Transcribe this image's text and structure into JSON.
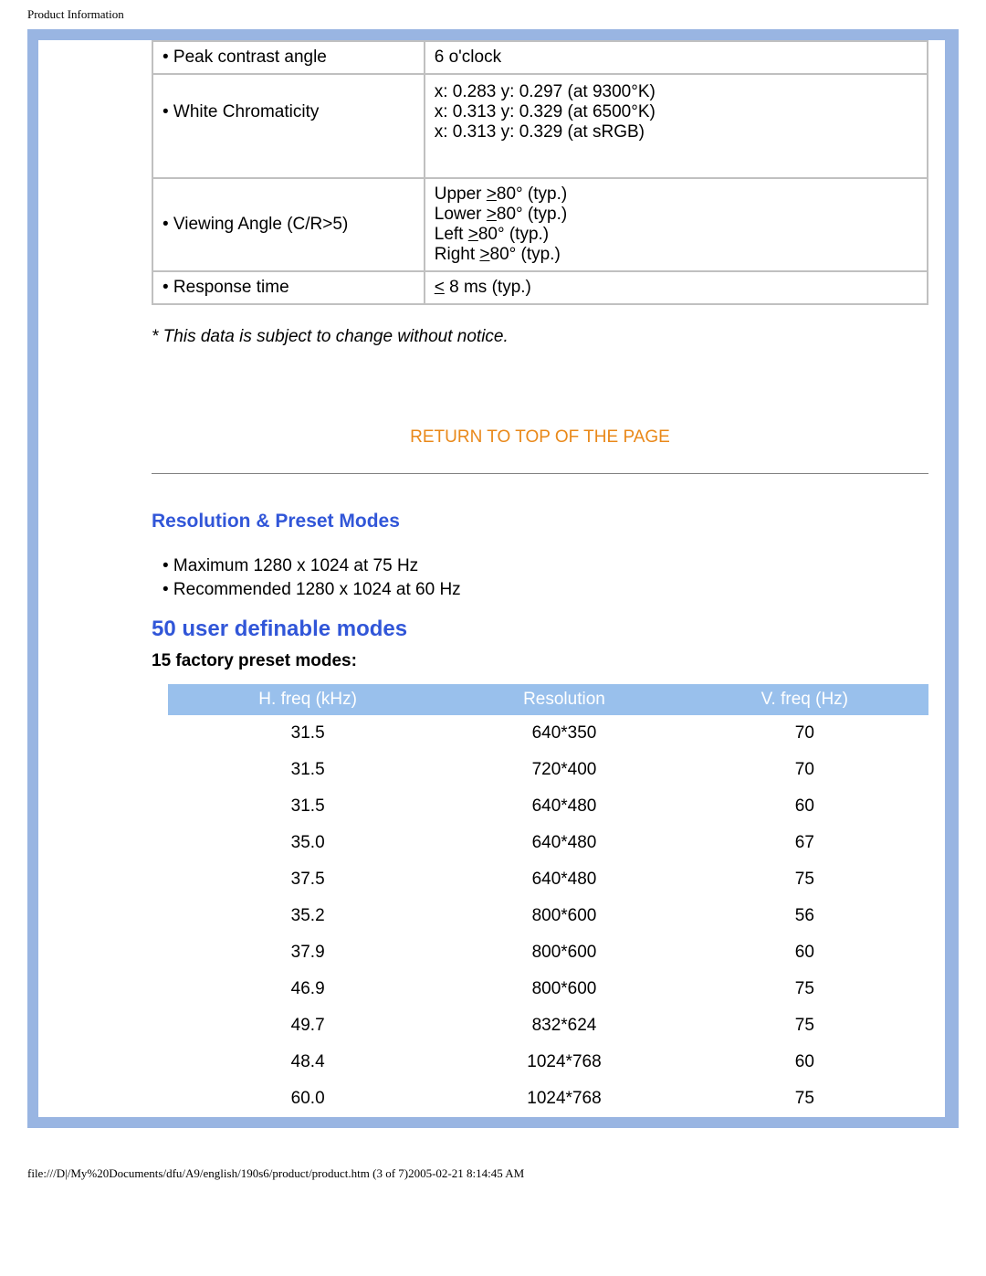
{
  "page_header": "Product Information",
  "spec_table": {
    "rows": [
      {
        "label": "Peak contrast angle",
        "value": "6 o'clock"
      },
      {
        "label": "White Chromaticity",
        "value_lines": [
          "x: 0.283 y: 0.297 (at 9300°K)",
          "x: 0.313 y: 0.329 (at 6500°K)",
          "x: 0.313 y: 0.329 (at sRGB)"
        ],
        "tall": true
      },
      {
        "label": "Viewing Angle (C/R>5)",
        "value_lines": [
          "Upper >80° (typ.)",
          "Lower >80° (typ.)",
          "Left >80° (typ.)",
          "Right >80° (typ.)"
        ],
        "ge_prefix": true
      },
      {
        "label": "Response time",
        "value": "< 8 ms (typ.)",
        "le": true
      }
    ]
  },
  "footnote": "* This data is subject to change without notice.",
  "toplink_label": "RETURN TO TOP OF THE PAGE",
  "section_title": "Resolution & Preset Modes",
  "bullets": [
    "Maximum 1280 x 1024 at 75 Hz",
    "Recommended 1280 x 1024 at 60 Hz"
  ],
  "subheader_big": "50 user definable modes",
  "subheader_small": "15 factory preset modes:",
  "preset_table": {
    "header_bg": "#99c0ec",
    "columns": [
      "H. freq (kHz)",
      "Resolution",
      "V. freq (Hz)"
    ],
    "rows": [
      [
        "31.5",
        "640*350",
        "70"
      ],
      [
        "31.5",
        "720*400",
        "70"
      ],
      [
        "31.5",
        "640*480",
        "60"
      ],
      [
        "35.0",
        "640*480",
        "67"
      ],
      [
        "37.5",
        "640*480",
        "75"
      ],
      [
        "35.2",
        "800*600",
        "56"
      ],
      [
        "37.9",
        "800*600",
        "60"
      ],
      [
        "46.9",
        "800*600",
        "75"
      ],
      [
        "49.7",
        "832*624",
        "75"
      ],
      [
        "48.4",
        "1024*768",
        "60"
      ],
      [
        "60.0",
        "1024*768",
        "75"
      ]
    ]
  },
  "page_footer": "file:///D|/My%20Documents/dfu/A9/english/190s6/product/product.htm (3 of 7)2005-02-21 8:14:45 AM"
}
